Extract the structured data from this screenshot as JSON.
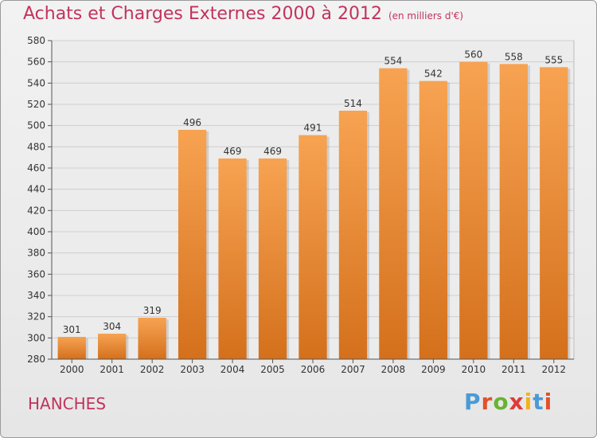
{
  "title": "Achats et Charges Externes 2000 à 2012",
  "unit_note": "(en milliers d'€)",
  "commune": "HANCHES",
  "brand": {
    "text": "Proxiti",
    "letter_colors": [
      "#4a9ad6",
      "#e0522a",
      "#69b234",
      "#e03a3a",
      "#f2b21b",
      "#4a9ad6",
      "#e0522a"
    ]
  },
  "colors": {
    "title": "#c2335b",
    "bar_light": "#f7a352",
    "bar_dark": "#d4701c",
    "axis": "#555555",
    "grid": "#cfcfcf"
  },
  "chart_data": {
    "type": "bar",
    "title": "Achats et Charges Externes 2000 à 2012",
    "categories": [
      "2000",
      "2001",
      "2002",
      "2003",
      "2004",
      "2005",
      "2006",
      "2007",
      "2008",
      "2009",
      "2010",
      "2011",
      "2012"
    ],
    "values": [
      301,
      304,
      319,
      496,
      469,
      469,
      491,
      514,
      554,
      542,
      560,
      558,
      555
    ],
    "ylim": [
      280,
      580
    ],
    "yticks": [
      280,
      300,
      320,
      340,
      360,
      380,
      400,
      420,
      440,
      460,
      480,
      500,
      520,
      540,
      560,
      580
    ],
    "grid": true,
    "data_labels": true
  }
}
